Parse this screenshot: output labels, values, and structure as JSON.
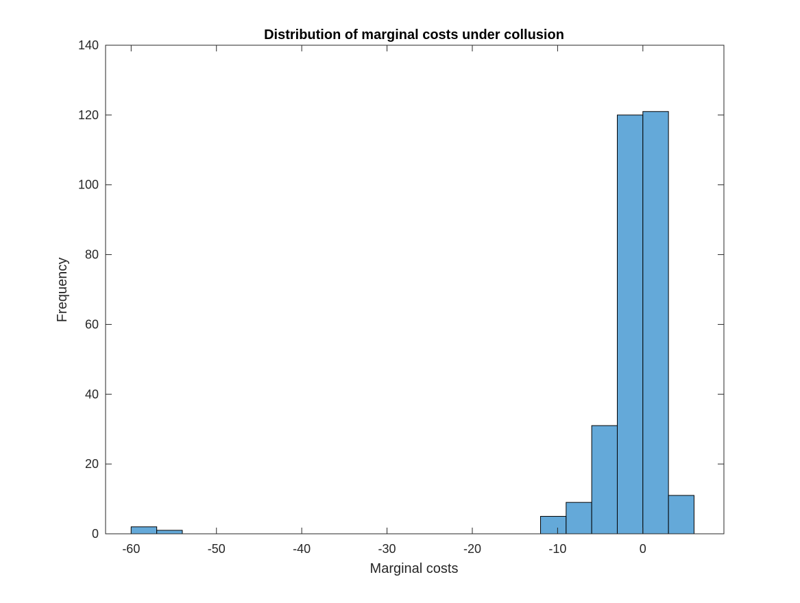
{
  "chart_data": {
    "type": "bar",
    "title": "Distribution of marginal costs under collusion",
    "xlabel": "Marginal costs",
    "ylabel": "Frequency",
    "xlim": [
      -63,
      9.5
    ],
    "ylim": [
      0,
      140
    ],
    "xticks": [
      -60,
      -50,
      -40,
      -30,
      -20,
      -10,
      0
    ],
    "yticks": [
      0,
      20,
      40,
      60,
      80,
      100,
      120,
      140
    ],
    "bin_width": 3,
    "bins": [
      {
        "x_start": -60,
        "x_end": -57,
        "count": 2
      },
      {
        "x_start": -57,
        "x_end": -54,
        "count": 1
      },
      {
        "x_start": -12,
        "x_end": -9,
        "count": 5
      },
      {
        "x_start": -9,
        "x_end": -6,
        "count": 9
      },
      {
        "x_start": -6,
        "x_end": -3,
        "count": 31
      },
      {
        "x_start": -3,
        "x_end": 0,
        "count": 120
      },
      {
        "x_start": 0,
        "x_end": 3,
        "count": 121
      },
      {
        "x_start": 3,
        "x_end": 6,
        "count": 11
      }
    ],
    "bar_color": "#64a9d9",
    "edge_color": "#000000",
    "grid": false,
    "box": true
  }
}
